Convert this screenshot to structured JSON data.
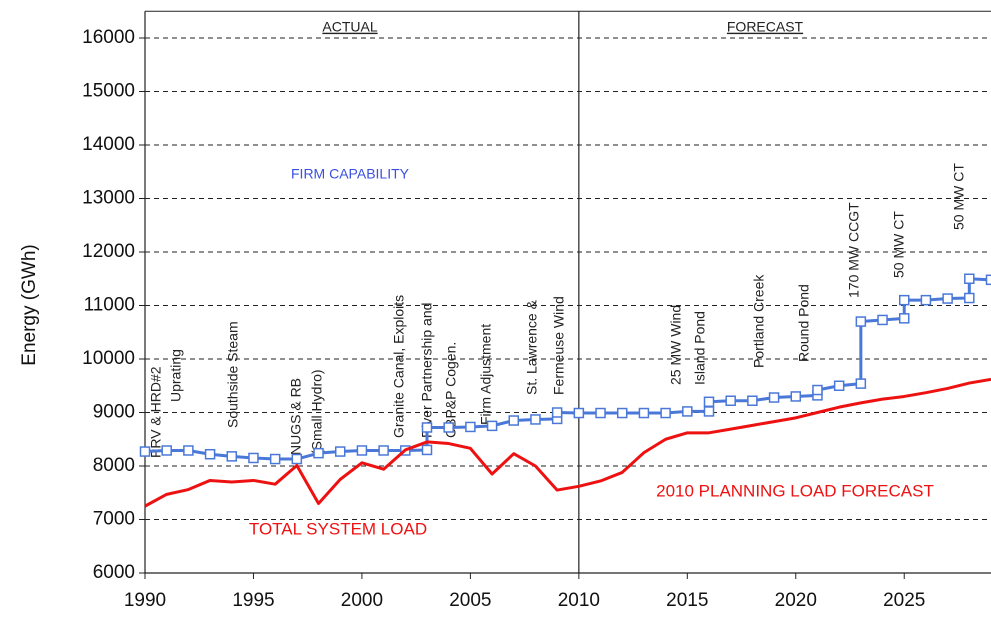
{
  "chart_data": {
    "type": "line",
    "y_label": "Energy (GWh)",
    "xlim": [
      1990,
      2029
    ],
    "ylim": [
      6000,
      16500
    ],
    "xticks": [
      1990,
      1995,
      2000,
      2005,
      2010,
      2015,
      2020,
      2025
    ],
    "yticks": [
      6000,
      7000,
      8000,
      9000,
      10000,
      11000,
      12000,
      13000,
      14000,
      15000,
      16000
    ],
    "grid": true,
    "divider_x": 2010,
    "section_labels": [
      "ACTUAL",
      "FORECAST"
    ],
    "series": [
      {
        "name": "FIRM CAPABILITY",
        "color": "#4a78d8",
        "marker": "square",
        "x": [
          1990,
          1991,
          1992,
          1993,
          1994,
          1995,
          1996,
          1997,
          1998,
          1999,
          2000,
          2001,
          2002,
          2003,
          2003,
          2004,
          2005,
          2006,
          2007,
          2008,
          2009,
          2009,
          2010,
          2011,
          2012,
          2013,
          2014,
          2015,
          2016,
          2016,
          2017,
          2018,
          2019,
          2020,
          2021,
          2021,
          2022,
          2023,
          2023,
          2024,
          2025,
          2025,
          2026,
          2027,
          2028,
          2028,
          2029
        ],
        "values": [
          8270,
          8290,
          8290,
          8220,
          8180,
          8150,
          8130,
          8130,
          8240,
          8270,
          8290,
          8290,
          8290,
          8300,
          8720,
          8720,
          8730,
          8750,
          8850,
          8870,
          8880,
          9000,
          8990,
          8990,
          8990,
          8990,
          8990,
          9020,
          9020,
          9200,
          9220,
          9220,
          9280,
          9300,
          9320,
          9420,
          9500,
          9540,
          10700,
          10730,
          10760,
          11100,
          11100,
          11130,
          11140,
          11500,
          11480
        ]
      },
      {
        "name": "TOTAL SYSTEM LOAD",
        "color": "#ee1111",
        "x": [
          1990,
          1991,
          1992,
          1993,
          1994,
          1995,
          1996,
          1997,
          1998,
          1999,
          2000,
          2001,
          2002,
          2003,
          2004,
          2005,
          2006,
          2007,
          2008,
          2009,
          2010,
          2011,
          2012,
          2013,
          2014,
          2015,
          2016,
          2017,
          2018,
          2019,
          2020,
          2021,
          2022,
          2023,
          2024,
          2025,
          2026,
          2027,
          2028,
          2029
        ],
        "values": [
          7250,
          7470,
          7560,
          7730,
          7700,
          7730,
          7660,
          8010,
          7300,
          7750,
          8060,
          7940,
          8300,
          8450,
          8420,
          8330,
          7850,
          8230,
          8000,
          7550,
          7620,
          7720,
          7880,
          8250,
          8500,
          8620,
          8620,
          8690,
          8760,
          8830,
          8900,
          9000,
          9100,
          9180,
          9250,
          9300,
          9370,
          9450,
          9550,
          9620
        ]
      }
    ],
    "forecast_label": "2010 PLANNING LOAD FORECAST",
    "annotations": [
      "PRV & HRD#2",
      "Uprating",
      "Southside Steam",
      "NUGS & RB",
      "(Small Hydro)",
      "Granite Canal, Exploits",
      "River Partnership and",
      "CBP&P Cogen.",
      "Firm Adjustment",
      "St. Lawrence &",
      "Fermeuse Wind",
      "25 MW Wind",
      "Island Pond",
      "Portland Creek",
      "Round Pond",
      "170 MW CCGT",
      "50 MW CT",
      "50 MW CT"
    ]
  }
}
